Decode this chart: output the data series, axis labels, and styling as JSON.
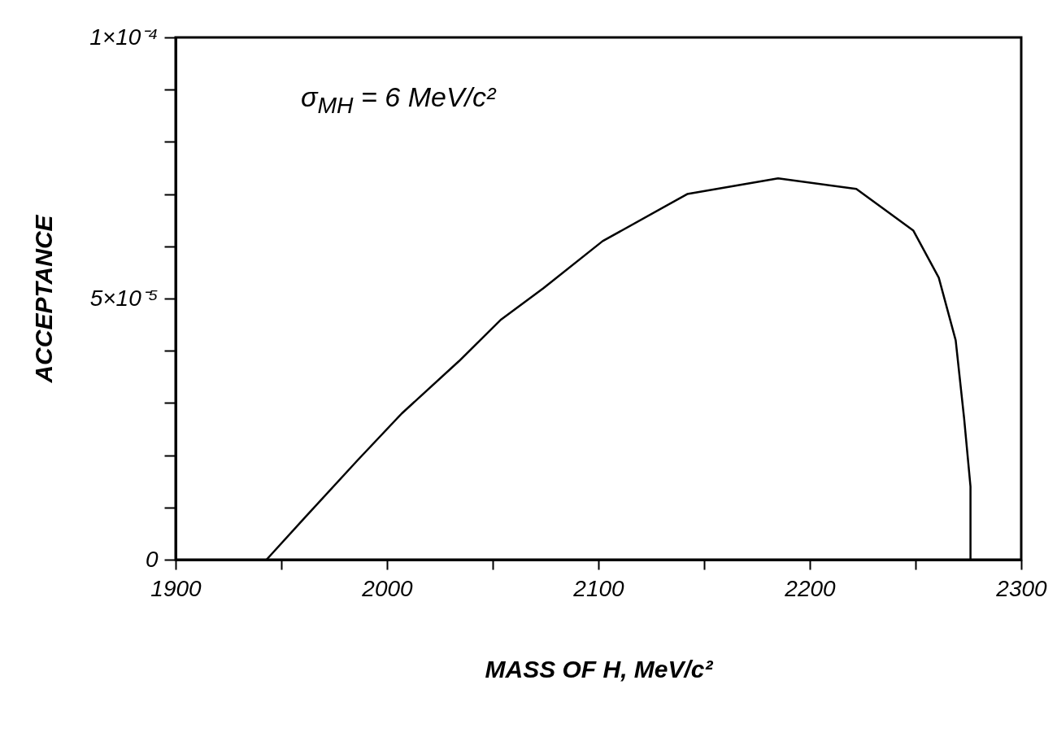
{
  "chart_data": {
    "type": "line",
    "xlabel": "MASS OF H, MeV/c²",
    "ylabel": "ACCEPTANCE",
    "annotations": [
      "σ$_{MH}$ = 6 MeV/c²"
    ],
    "x": [
      1943,
      1961,
      1986,
      2007,
      2034,
      2054,
      2074,
      2102,
      2142,
      2185,
      2222,
      2249,
      2261,
      2269,
      2273,
      2276,
      2276
    ],
    "series": [
      {
        "color": "#000000",
        "values": [
          0,
          8e-06,
          1.9e-05,
          2.8e-05,
          3.8e-05,
          4.6e-05,
          5.2e-05,
          6.1e-05,
          7e-05,
          7.3e-05,
          7.1e-05,
          6.3e-05,
          5.4e-05,
          4.2e-05,
          2.7e-05,
          1.4e-05,
          0
        ]
      }
    ],
    "xlim": [
      1900,
      2300
    ],
    "ylim": [
      0,
      0.0001
    ],
    "xticks": [
      1900,
      {
        "value": 1950,
        "label": null
      },
      2000,
      {
        "value": 2050,
        "label": null
      },
      2100,
      {
        "value": 2150,
        "label": null
      },
      2200,
      {
        "value": 2250,
        "label": null
      },
      2300
    ],
    "yticks": [
      0,
      {
        "value": 1e-05,
        "label": null
      },
      {
        "value": 2e-05,
        "label": null
      },
      {
        "value": 3e-05,
        "label": null
      },
      {
        "value": 4e-05,
        "label": null
      },
      {
        "value": 5e-05,
        "label": "5×10⁻⁵"
      },
      {
        "value": 6e-05,
        "label": null
      },
      {
        "value": 7e-05,
        "label": null
      },
      {
        "value": 8e-05,
        "label": null
      },
      {
        "value": 9e-05,
        "label": null
      },
      {
        "value": 0.0001,
        "label": "1×10⁻⁴"
      }
    ]
  }
}
